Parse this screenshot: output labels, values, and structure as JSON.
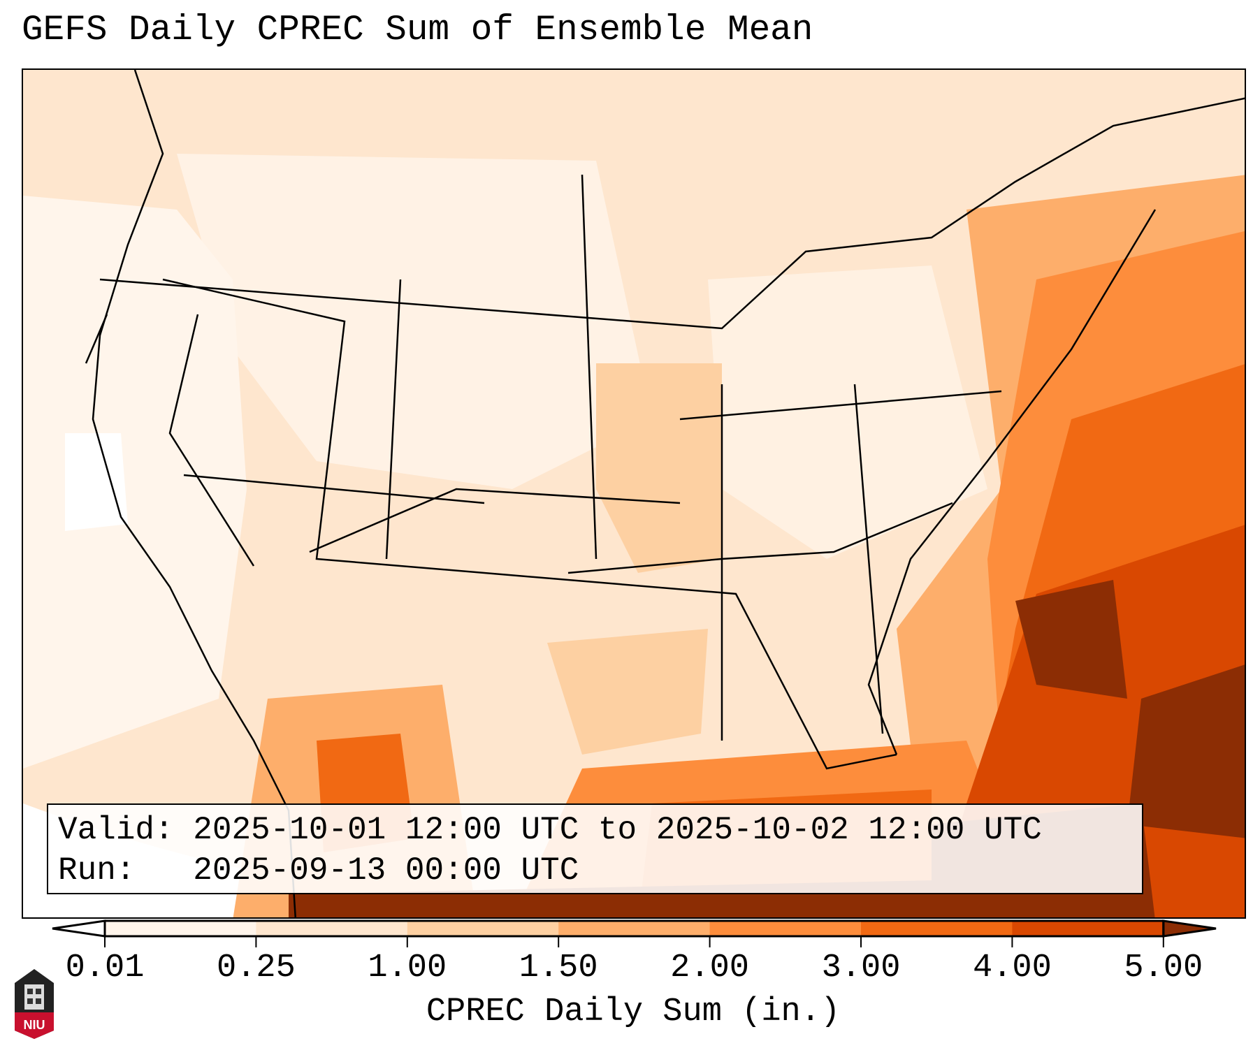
{
  "title": "GEFS Daily CPREC Sum of Ensemble Mean",
  "info": {
    "valid": "Valid: 2025-10-01 12:00 UTC to 2025-10-02 12:00 UTC",
    "run": "Run:   2025-09-13 00:00 UTC"
  },
  "colorbar": {
    "label": "CPREC Daily Sum (in.)",
    "ticks": [
      "0.01",
      "0.25",
      "1.00",
      "1.50",
      "2.00",
      "3.00",
      "4.00",
      "5.00"
    ],
    "colors": [
      "#fff5eb",
      "#fee6ce",
      "#fdd0a2",
      "#fdae6b",
      "#fd8d3c",
      "#f16913",
      "#d94801",
      "#8c2d04"
    ],
    "under_color": "#ffffff",
    "over_color": "#8c2d04"
  },
  "logo": {
    "text": "NIU"
  }
}
